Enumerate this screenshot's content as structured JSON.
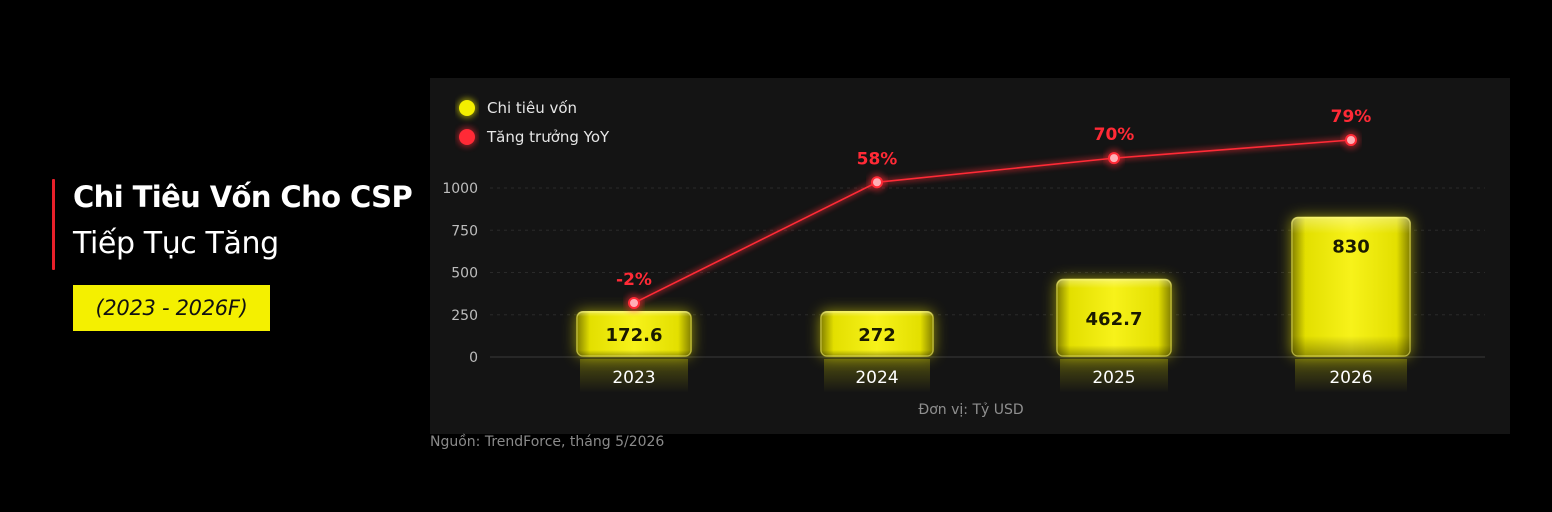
{
  "header": {
    "title_line1": "Chi Tiêu Vốn Cho CSP",
    "title_line2": "Tiếp Tục Tăng",
    "period": "(2023 - 2026F)"
  },
  "source": "Nguồn: TrendForce, tháng 5/2026",
  "colors": {
    "bar": "#f3ee00",
    "line": "#ff2a36",
    "accent": "#e8202a",
    "panel": "#141414"
  },
  "chart_data": {
    "type": "bar",
    "categories": [
      "2023",
      "2024",
      "2025",
      "2026"
    ],
    "series": [
      {
        "name": "Chi tiêu vốn",
        "type": "bar",
        "values": [
          172.6,
          272,
          462.7,
          830
        ],
        "value_labels": [
          "172.6",
          "272",
          "462.7",
          "830"
        ]
      },
      {
        "name": "Tăng trưởng YoY",
        "type": "line",
        "values": [
          -2,
          58,
          70,
          79
        ],
        "value_labels": [
          "-2%",
          "58%",
          "70%",
          "79%"
        ]
      }
    ],
    "xlabel": "Đơn vị: Tỷ USD",
    "ylabel": "",
    "yticks": [
      "0",
      "250",
      "500",
      "750",
      "1000"
    ],
    "ylim": [
      0,
      1000
    ],
    "grid": true,
    "legend_position": "top-left"
  }
}
